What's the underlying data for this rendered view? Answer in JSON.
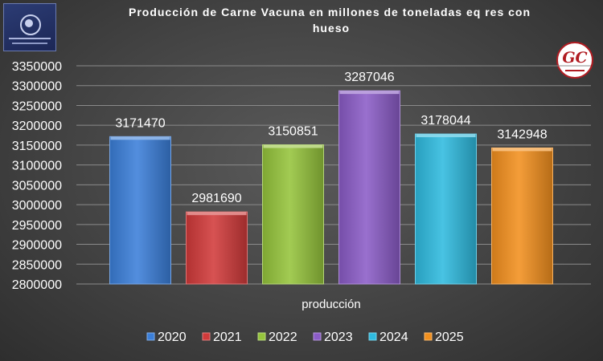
{
  "logos": {
    "right_text": "GC"
  },
  "colors": {
    "gridline": "#8a8a8a",
    "text": "#ffffff"
  },
  "chart_data": {
    "type": "bar",
    "title": "Producción de Carne Vacuna en millones de toneladas eq res con hueso",
    "title_lines": [
      "Producción de Carne Vacuna en millones de toneladas eq res con",
      "hueso"
    ],
    "xlabel": "",
    "ylabel": "",
    "category_label": "producción",
    "ylim": [
      2800000,
      3350000
    ],
    "ytick_step": 50000,
    "yticks": [
      "3350000",
      "3300000",
      "3250000",
      "3200000",
      "3150000",
      "3100000",
      "3050000",
      "3000000",
      "2950000",
      "2900000",
      "2850000",
      "2800000"
    ],
    "grid": true,
    "legend_position": "bottom",
    "series": [
      {
        "name": "2020",
        "values": [
          3171470
        ],
        "color": "#3b7fd9"
      },
      {
        "name": "2021",
        "values": [
          2981690
        ],
        "color": "#d13a3a"
      },
      {
        "name": "2022",
        "values": [
          3150851
        ],
        "color": "#95c43c"
      },
      {
        "name": "2023",
        "values": [
          3287046
        ],
        "color": "#8b5cc7"
      },
      {
        "name": "2024",
        "values": [
          3178044
        ],
        "color": "#2fbbdf"
      },
      {
        "name": "2025",
        "values": [
          3142948
        ],
        "color": "#f2901e"
      }
    ],
    "data_labels": [
      "3171470",
      "2981690",
      "3150851",
      "3287046",
      "3178044",
      "3142948"
    ]
  }
}
